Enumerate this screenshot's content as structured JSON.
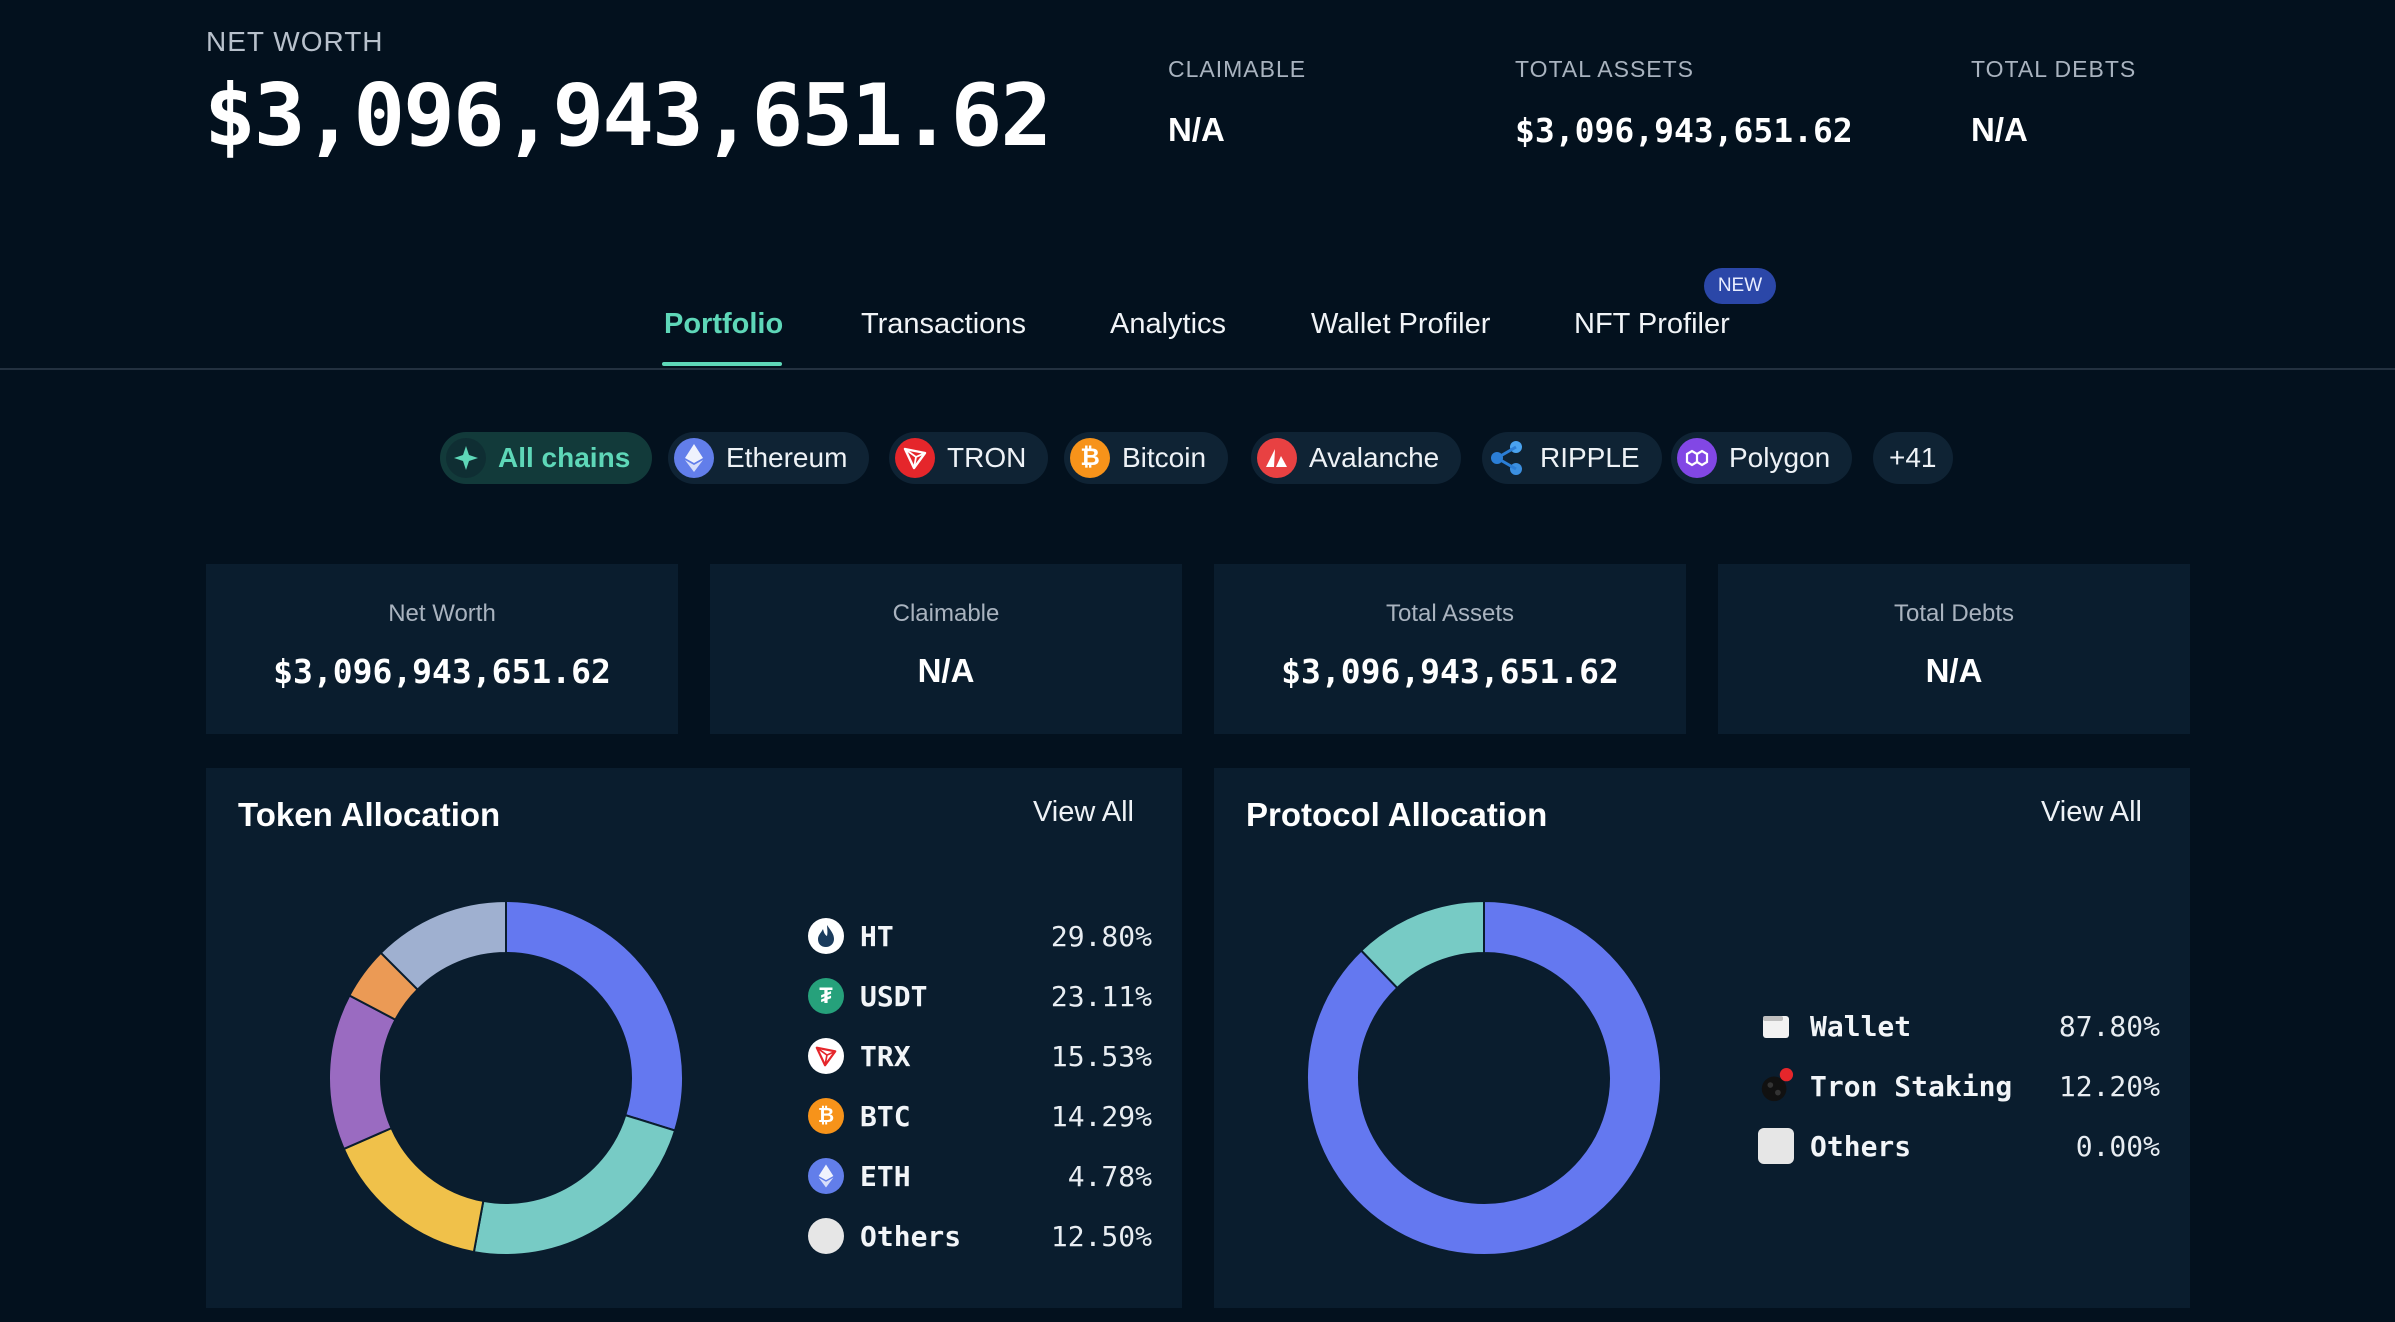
{
  "summary": {
    "net_worth_label": "NET WORTH",
    "net_worth_value": "$3,096,943,651.62",
    "claimable_label": "CLAIMABLE",
    "claimable_value": "N/A",
    "total_assets_label": "TOTAL ASSETS",
    "total_assets_value": "$3,096,943,651.62",
    "total_debts_label": "TOTAL DEBTS",
    "total_debts_value": "N/A"
  },
  "tabs": [
    {
      "label": "Portfolio",
      "active": true
    },
    {
      "label": "Transactions"
    },
    {
      "label": "Analytics"
    },
    {
      "label": "Wallet Profiler"
    },
    {
      "label": "NFT Profiler",
      "badge": "NEW"
    }
  ],
  "chains": [
    {
      "label": "All chains",
      "icon": "all-chains-icon",
      "color": "#5ed7b8",
      "active": true
    },
    {
      "label": "Ethereum",
      "icon": "ethereum-icon",
      "color": "#627eea"
    },
    {
      "label": "TRON",
      "icon": "tron-icon",
      "color": "#e5262b"
    },
    {
      "label": "Bitcoin",
      "icon": "bitcoin-icon",
      "color": "#f7931a"
    },
    {
      "label": "Avalanche",
      "icon": "avalanche-icon",
      "color": "#e84142"
    },
    {
      "label": "RIPPLE",
      "icon": "ripple-icon",
      "color": "#2b7ed6"
    },
    {
      "label": "Polygon",
      "icon": "polygon-icon",
      "color": "#8247e5"
    },
    {
      "label": "+41"
    }
  ],
  "stats": [
    {
      "label": "Net Worth",
      "value": "$3,096,943,651.62"
    },
    {
      "label": "Claimable",
      "value": "N/A"
    },
    {
      "label": "Total Assets",
      "value": "$3,096,943,651.62"
    },
    {
      "label": "Total Debts",
      "value": "N/A"
    }
  ],
  "token_allocation": {
    "title": "Token Allocation",
    "view_all": "View All",
    "items": [
      {
        "name": "HT",
        "pct": "29.80%",
        "icon": "huobi-token-icon"
      },
      {
        "name": "USDT",
        "pct": "23.11%",
        "icon": "tether-icon"
      },
      {
        "name": "TRX",
        "pct": "15.53%",
        "icon": "tron-icon"
      },
      {
        "name": "BTC",
        "pct": "14.29%",
        "icon": "bitcoin-icon"
      },
      {
        "name": "ETH",
        "pct": "4.78%",
        "icon": "ethereum-icon"
      },
      {
        "name": "Others",
        "pct": "12.50%",
        "icon": "others-icon"
      }
    ]
  },
  "protocol_allocation": {
    "title": "Protocol Allocation",
    "view_all": "View All",
    "items": [
      {
        "name": "Wallet",
        "pct": "87.80%",
        "icon": "wallet-icon"
      },
      {
        "name": "Tron Staking",
        "pct": "12.20%",
        "icon": "tron-staking-icon"
      },
      {
        "name": "Others",
        "pct": "0.00%",
        "icon": "others-icon"
      }
    ]
  },
  "chart_data": [
    {
      "type": "pie",
      "title": "Token Allocation",
      "categories": [
        "HT",
        "USDT",
        "TRX",
        "BTC",
        "ETH",
        "Others"
      ],
      "values": [
        29.8,
        23.11,
        15.53,
        14.29,
        4.78,
        12.5
      ],
      "colors": [
        "#6478f0",
        "#77cbc5",
        "#f0c14a",
        "#9a6bc1",
        "#eb9a55",
        "#9fb0d0"
      ]
    },
    {
      "type": "pie",
      "title": "Protocol Allocation",
      "categories": [
        "Wallet",
        "Tron Staking",
        "Others"
      ],
      "values": [
        87.8,
        12.2,
        0.0
      ],
      "colors": [
        "#6478f0",
        "#77cbc5",
        "#e6e6e6"
      ]
    }
  ]
}
